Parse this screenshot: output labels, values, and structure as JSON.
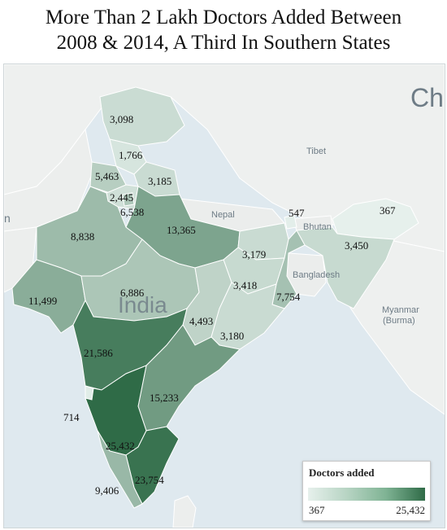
{
  "title": {
    "line1": "More Than 2 Lakh Doctors Added Between",
    "line2": "2008 & 2014, A Third In Southern States"
  },
  "map_labels": {
    "china": "Ch",
    "tibet": "Tibet",
    "nepal": "Nepal",
    "bhutan": "Bhutan",
    "bangladesh": "Bangladesh",
    "india": "India",
    "myanmar_line1": "Myanmar",
    "myanmar_line2": "(Burma)",
    "left_edge": "n"
  },
  "states": [
    {
      "id": "jammu-kashmir",
      "value": 3098,
      "label": "3,098"
    },
    {
      "id": "himachal-pradesh",
      "value": 1766,
      "label": "1,766"
    },
    {
      "id": "punjab",
      "value": 5463,
      "label": "5,463"
    },
    {
      "id": "uttarakhand",
      "value": 3185,
      "label": "3,185"
    },
    {
      "id": "haryana",
      "value": 2445,
      "label": "2,445"
    },
    {
      "id": "delhi",
      "value": 6538,
      "label": "6,538"
    },
    {
      "id": "rajasthan",
      "value": 8838,
      "label": "8,838"
    },
    {
      "id": "uttar-pradesh",
      "value": 13365,
      "label": "13,365"
    },
    {
      "id": "sikkim",
      "value": 547,
      "label": "547"
    },
    {
      "id": "arunachal-pradesh",
      "value": 367,
      "label": "367"
    },
    {
      "id": "assam-northeast",
      "value": 3450,
      "label": "3,450"
    },
    {
      "id": "bihar",
      "value": 3179,
      "label": "3,179"
    },
    {
      "id": "jharkhand",
      "value": 3418,
      "label": "3,418"
    },
    {
      "id": "west-bengal",
      "value": 7754,
      "label": "7,754"
    },
    {
      "id": "gujarat",
      "value": 11499,
      "label": "11,499"
    },
    {
      "id": "madhya-pradesh",
      "value": 6886,
      "label": "6,886"
    },
    {
      "id": "chhattisgarh",
      "value": 4493,
      "label": "4,493"
    },
    {
      "id": "odisha",
      "value": 3180,
      "label": "3,180"
    },
    {
      "id": "maharashtra",
      "value": 21586,
      "label": "21,586"
    },
    {
      "id": "andhra-pradesh",
      "value": 15233,
      "label": "15,233"
    },
    {
      "id": "goa",
      "value": 714,
      "label": "714"
    },
    {
      "id": "karnataka",
      "value": 25432,
      "label": "25,432"
    },
    {
      "id": "tamil-nadu",
      "value": 23754,
      "label": "23,754"
    },
    {
      "id": "kerala",
      "value": 9406,
      "label": "9,406"
    }
  ],
  "legend": {
    "title": "Doctors added",
    "min_label": "367",
    "max_label": "25,432",
    "min": 367,
    "max": 25432,
    "color_low": "#e6f0ec",
    "color_high": "#2f6b47"
  },
  "colors": {
    "land": "#eef0ef",
    "sea": "#dfe9ef",
    "border": "#ffffff"
  }
}
